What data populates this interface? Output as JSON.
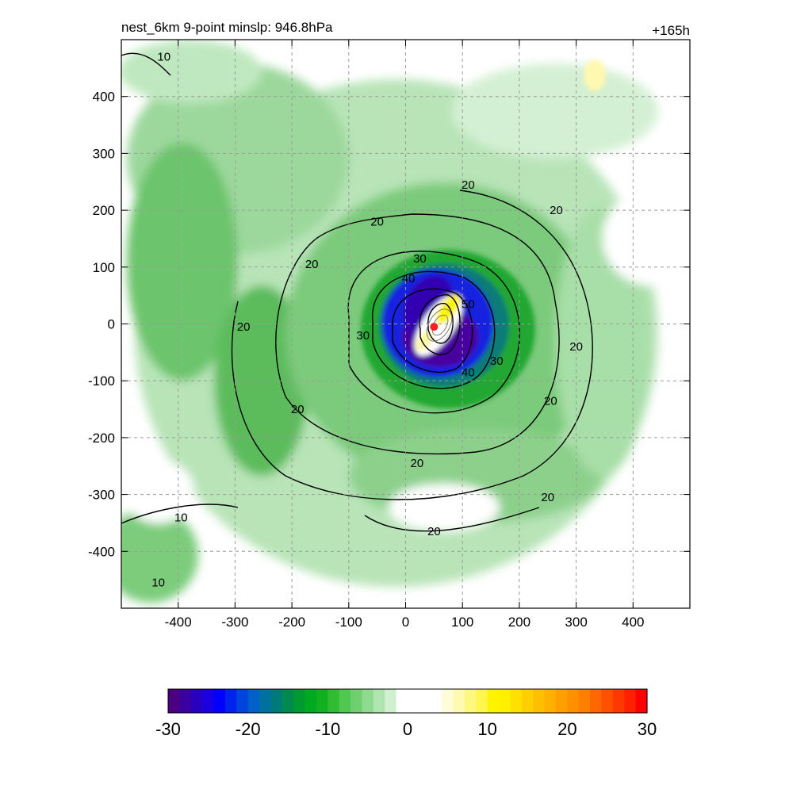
{
  "chart_data": {
    "type": "heatmap",
    "title_left": "nest_6km  9-point minslp: 946.8hPa",
    "title_right": "+165h",
    "xlabel": "",
    "ylabel": "",
    "xlim": [
      -500,
      500
    ],
    "ylim": [
      -500,
      500
    ],
    "x_ticks": [
      -400,
      -300,
      -200,
      -100,
      0,
      100,
      200,
      300,
      400
    ],
    "y_ticks": [
      400,
      300,
      200,
      100,
      0,
      -100,
      -200,
      -300,
      -400
    ],
    "grid": true,
    "center_marker": {
      "x": 50,
      "y": -5,
      "color": "#ff2020"
    },
    "contour_levels_labeled": [
      {
        "label": "10",
        "x": -425,
        "y": 470
      },
      {
        "label": "10",
        "x": -395,
        "y": -340
      },
      {
        "label": "10",
        "x": -435,
        "y": -455
      },
      {
        "label": "20",
        "x": -165,
        "y": 105
      },
      {
        "label": "20",
        "x": -285,
        "y": -5
      },
      {
        "label": "20",
        "x": -190,
        "y": -150
      },
      {
        "label": "20",
        "x": -50,
        "y": 180
      },
      {
        "label": "20",
        "x": 110,
        "y": 245
      },
      {
        "label": "20",
        "x": 265,
        "y": 200
      },
      {
        "label": "20",
        "x": 300,
        "y": -40
      },
      {
        "label": "20",
        "x": 255,
        "y": -135
      },
      {
        "label": "20",
        "x": 250,
        "y": -305
      },
      {
        "label": "20",
        "x": 20,
        "y": -245
      },
      {
        "label": "20",
        "x": 50,
        "y": -365
      },
      {
        "label": "30",
        "x": 25,
        "y": 115
      },
      {
        "label": "30",
        "x": -75,
        "y": -20
      },
      {
        "label": "30",
        "x": 160,
        "y": -65
      },
      {
        "label": "40",
        "x": 5,
        "y": 80
      },
      {
        "label": "40",
        "x": 110,
        "y": -85
      },
      {
        "label": "50",
        "x": 110,
        "y": 35
      }
    ],
    "colorbar": {
      "min": -30,
      "max": 30,
      "ticks": [
        "-30",
        "-20",
        "-10",
        "0",
        "10",
        "20",
        "30"
      ],
      "colors": [
        "#4b0082",
        "#3a00a0",
        "#2a00c0",
        "#1a00e0",
        "#0000ff",
        "#0022ee",
        "#0044dd",
        "#0060c8",
        "#0070a0",
        "#007a78",
        "#008a50",
        "#009a30",
        "#00aa20",
        "#10b020",
        "#30bb30",
        "#50c850",
        "#70d070",
        "#90da90",
        "#b0e4b0",
        "#d0f0d0",
        "#ffffff",
        "#ffffff",
        "#ffffff",
        "#ffffff",
        "#fffcd8",
        "#fffab0",
        "#fff880",
        "#fff650",
        "#fff400",
        "#fff000",
        "#ffe000",
        "#ffd000",
        "#ffc000",
        "#ffb000",
        "#ffa000",
        "#ff9000",
        "#ff8000",
        "#ff6800",
        "#ff5000",
        "#ff3800",
        "#ff2000",
        "#ff0000"
      ]
    }
  }
}
